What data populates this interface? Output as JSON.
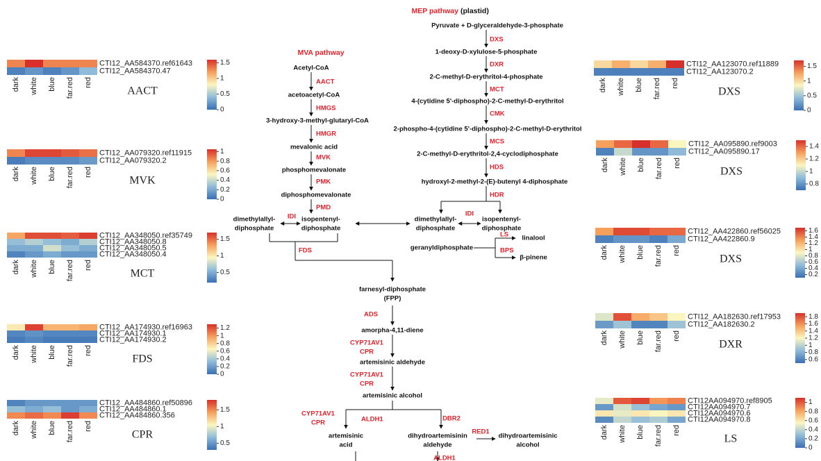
{
  "pathway": {
    "mep_title": "MEP pathway",
    "mep_subtitle": "(plastid)",
    "mva_title": "MVA pathway",
    "metabolites": [
      [
        "Pyruvate + D-glyceraldehyde-3-phosphate"
      ],
      [
        "1-deoxy-D-xylulose-5-phosphate"
      ],
      [
        "2-C-methyl-D-erythritol-4-phosphate"
      ],
      [
        "4-(cytidine 5'-diphospho)-2-C-methyl-D-erythritol"
      ],
      [
        "2-phospho-4-(cytidine 5'-diphospho)-2-C-methyl-D-erythritol"
      ],
      [
        "2-C-methyl-D-erythritol-2,4-cyclodiphosphate"
      ],
      [
        "hydroxyl-2-methyl-2-(E)-butenyl 4-diphosphate"
      ],
      [
        "dimethylallyl-",
        "diphosphate"
      ],
      [
        "isopentenyl-",
        "diphosphate"
      ],
      [
        "geranyldiphosphate"
      ],
      [
        "linalool"
      ],
      [
        "β-pinene"
      ],
      [
        "Acetyl-CoA"
      ],
      [
        "acetoacetyl-CoA"
      ],
      [
        "3-hydroxy-3-methyl-glutaryl-CoA"
      ],
      [
        "mevalonic acid"
      ],
      [
        "phosphomevalonate"
      ],
      [
        "diphosphomevalonate"
      ],
      [
        "dimethylallyl-",
        "diphosphate"
      ],
      [
        "isopentenyl-",
        "diphosphate"
      ],
      [
        "farnesyl-diphosphate",
        "(FPP)"
      ],
      [
        "amorpha-4,11-diene"
      ],
      [
        "artemisinic aldehyde"
      ],
      [
        "artemisinic alcohol"
      ],
      [
        "artemisinic",
        "acid"
      ],
      [
        "dihydroartemisinin",
        "aldehyde"
      ],
      [
        "dihydroartemisinic",
        "alcohol"
      ]
    ],
    "enzymes": [
      [
        "DXS"
      ],
      [
        "DXR"
      ],
      [
        "MCT"
      ],
      [
        "CMK"
      ],
      [
        "MCS"
      ],
      [
        "HDS"
      ],
      [
        "HDR"
      ],
      [
        "IDI"
      ],
      [
        "LS"
      ],
      [
        "BPS"
      ],
      [
        "AACT"
      ],
      [
        "HMGS"
      ],
      [
        "HMGR"
      ],
      [
        "MVK"
      ],
      [
        "PMK"
      ],
      [
        "PMD"
      ],
      [
        "IDI"
      ],
      [
        "FDS"
      ],
      [
        "ADS"
      ],
      [
        "CYP71AV1",
        "CPR"
      ],
      [
        "CYP71AV1",
        "CPR"
      ],
      [
        "CYP71AV1",
        "CPR"
      ],
      [
        "ALDH1"
      ],
      [
        "DBR2"
      ],
      [
        "RED1"
      ],
      [
        "ALDH1"
      ]
    ]
  },
  "heatmaps": [
    {
      "title": "AACT",
      "rows": [
        "CTI12_AA584370.ref61643",
        "CTI12_AA584370.47"
      ],
      "columns": [
        "dark",
        "white",
        "blue",
        "far.red",
        "red"
      ],
      "values": [
        [
          1.3,
          1.6,
          1.3,
          1.3,
          1.3
        ],
        [
          0.1,
          0.2,
          0.1,
          0.2,
          0.4
        ]
      ],
      "colorbar_range": [
        0,
        1.6
      ],
      "colorbar_ticks": [
        0,
        0.5,
        1,
        1.5
      ]
    },
    {
      "title": "MVK",
      "rows": [
        "CTI12_AA079320.ref11915",
        "CTI12_AA079320.2"
      ],
      "columns": [
        "dark",
        "white",
        "blue",
        "far.red",
        "red"
      ],
      "values": [
        [
          0.85,
          1,
          1,
          0.95,
          0.9
        ],
        [
          0.05,
          0.1,
          0.1,
          0.1,
          0.15
        ]
      ],
      "colorbar_range": [
        0,
        1.05
      ],
      "colorbar_ticks": [
        0,
        0.2,
        0.4,
        0.6,
        0.8,
        1
      ]
    },
    {
      "title": "MCT",
      "rows": [
        "CTI12_AA348050.ref35749",
        "CTI12_AA348050.8",
        "CTI12_AA348050.5",
        "CTI12_AA348050.4"
      ],
      "columns": [
        "dark",
        "white",
        "blue",
        "far.red",
        "red"
      ],
      "values": [
        [
          1.3,
          1.6,
          1.6,
          1.55,
          1.65
        ],
        [
          0.6,
          0.7,
          0.6,
          0.5,
          0.7
        ],
        [
          0.5,
          0.5,
          0.8,
          0.6,
          0.5
        ],
        [
          0.3,
          0.4,
          0.5,
          0.4,
          0.4
        ]
      ],
      "colorbar_range": [
        0.2,
        1.7
      ],
      "colorbar_ticks": [
        0.5,
        1,
        1.5
      ]
    },
    {
      "title": "FDS",
      "rows": [
        "CTI12_AA174930.ref16963",
        "CTI12_AA174930.1",
        "CTI12_AA174930.2"
      ],
      "columns": [
        "dark",
        "white",
        "blue",
        "far.red",
        "red"
      ],
      "values": [
        [
          0.7,
          1.25,
          0.9,
          0.9,
          0.95
        ],
        [
          0.1,
          0.15,
          0.1,
          0.1,
          0.1
        ],
        [
          0.05,
          0.1,
          0.05,
          0.05,
          0.05
        ]
      ],
      "colorbar_range": [
        0,
        1.3
      ],
      "colorbar_ticks": [
        0,
        0.2,
        0.4,
        0.6,
        0.8,
        1,
        1.2
      ]
    },
    {
      "title": "CPR",
      "rows": [
        "CTI12_AA484860.ref50896",
        "CTI12_AA484860.1",
        "CTI12_AA484860.356"
      ],
      "columns": [
        "dark",
        "white",
        "blue",
        "far.red",
        "red"
      ],
      "values": [
        [
          0.4,
          0.5,
          0.5,
          0.5,
          0.5
        ],
        [
          0.7,
          0.6,
          0.7,
          0.5,
          0.6
        ],
        [
          1.5,
          1.6,
          1.5,
          1.75,
          1.5
        ]
      ],
      "colorbar_range": [
        0.3,
        1.8
      ],
      "colorbar_ticks": [
        0.5,
        1,
        1.5
      ]
    },
    {
      "title": "DXS",
      "rows": [
        "CTI12_AA123070.ref11889",
        "CTI12_AA123070.2"
      ],
      "columns": [
        "dark",
        "white",
        "blue",
        "far.red",
        "red"
      ],
      "values": [
        [
          1.0,
          1.2,
          1.0,
          1.2,
          1.7
        ],
        [
          0.1,
          0.1,
          0.1,
          0.1,
          0.1
        ]
      ],
      "colorbar_range": [
        0,
        1.7
      ],
      "colorbar_ticks": [
        0,
        0.5,
        1,
        1.5
      ]
    },
    {
      "title": "DXS",
      "rows": [
        "CTI12_AA095890.ref9003",
        "CTI12_AA095890.17"
      ],
      "columns": [
        "dark",
        "white",
        "blue",
        "far.red",
        "red"
      ],
      "values": [
        [
          1.3,
          1.4,
          1.5,
          1.4,
          1.1
        ],
        [
          0.75,
          1.0,
          0.8,
          0.8,
          0.9
        ]
      ],
      "colorbar_range": [
        0.7,
        1.5
      ],
      "colorbar_ticks": [
        0.8,
        1,
        1.2,
        1.4
      ]
    },
    {
      "title": "DXS",
      "rows": [
        "CTI12_AA422860.ref56025",
        "CTI12_AA422860.9"
      ],
      "columns": [
        "dark",
        "white",
        "blue",
        "far.red",
        "red"
      ],
      "values": [
        [
          1.3,
          1.6,
          1.6,
          1.5,
          1.5
        ],
        [
          0.2,
          0.3,
          0.3,
          0.2,
          0.4
        ]
      ],
      "colorbar_range": [
        0.1,
        1.7
      ],
      "colorbar_ticks": [
        0.2,
        0.4,
        0.6,
        0.8,
        1,
        1.2,
        1.4,
        1.6
      ]
    },
    {
      "title": "DXR",
      "rows": [
        "CTI12_AA182630.ref17953",
        "CTI12_AA182630.2"
      ],
      "columns": [
        "dark",
        "white",
        "blue",
        "far.red",
        "red"
      ],
      "values": [
        [
          1.1,
          1.8,
          1.5,
          1.4,
          1.2
        ],
        [
          0.7,
          0.9,
          0.6,
          0.6,
          0.9
        ]
      ],
      "colorbar_range": [
        0.5,
        1.9
      ],
      "colorbar_ticks": [
        0.6,
        0.8,
        1,
        1.2,
        1.4,
        1.6,
        1.8
      ]
    },
    {
      "title": "LS",
      "rows": [
        "CTI12AA094970.ref8905",
        "CTI12AA094970.7",
        "CTI12AA094970.6",
        "CTI12AA094970.8"
      ],
      "columns": [
        "dark",
        "white",
        "blue",
        "far.red",
        "red"
      ],
      "values": [
        [
          0.5,
          1.0,
          1.05,
          0.85,
          0.9
        ],
        [
          0.15,
          0.45,
          0.3,
          0.2,
          0.15
        ],
        [
          0.6,
          0.5,
          0.6,
          0.55,
          0.6
        ],
        [
          0.1,
          0.4,
          0.3,
          0.35,
          0.2
        ]
      ],
      "colorbar_range": [
        0,
        1.1
      ],
      "colorbar_ticks": [
        0,
        0.2,
        0.4,
        0.6,
        0.8,
        1
      ]
    }
  ]
}
